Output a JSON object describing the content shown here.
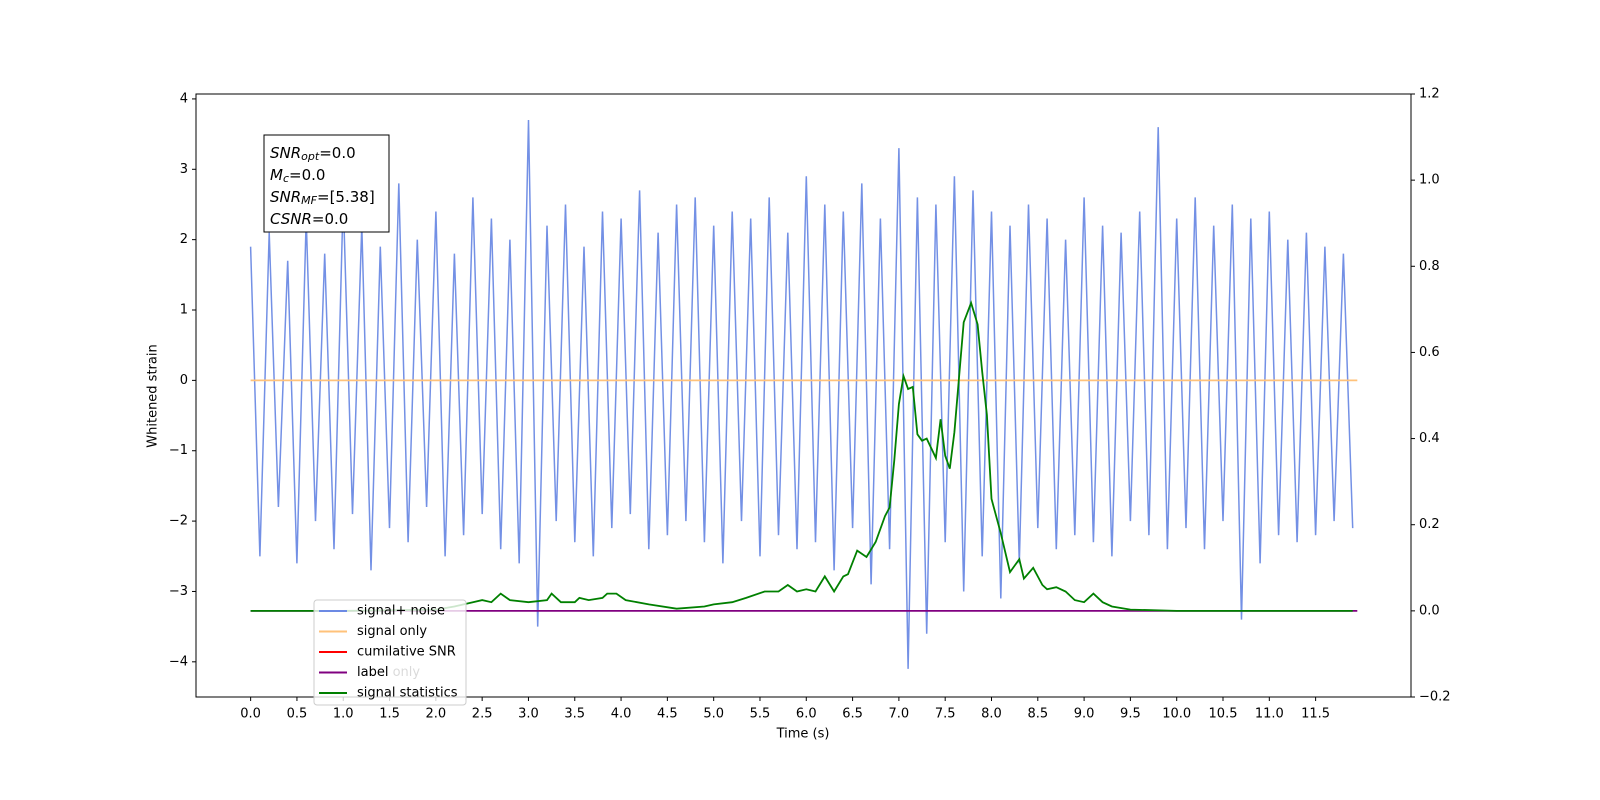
{
  "chart_data": {
    "type": "line",
    "xlabel": "Time (s)",
    "ylabel": "Whitened strain",
    "xlim": [
      -0.59,
      12.53
    ],
    "ylim": [
      -4.5,
      4.07
    ],
    "y2lim": [
      -0.2,
      1.2
    ],
    "xticks": [
      {
        "value": 0,
        "label": "0.0"
      },
      0.5,
      {
        "value": 1,
        "label": "1.0"
      },
      1.5,
      {
        "value": 2,
        "label": "2.0"
      },
      2.5,
      {
        "value": 3,
        "label": "3.0"
      },
      3.5,
      {
        "value": 4,
        "label": "4.0"
      },
      4.5,
      {
        "value": 5,
        "label": "5.0"
      },
      5.5,
      {
        "value": 6,
        "label": "6.0"
      },
      6.5,
      {
        "value": 7,
        "label": "7.0"
      },
      7.5,
      {
        "value": 8,
        "label": "8.0"
      },
      8.5,
      {
        "value": 9,
        "label": "9.0"
      },
      9.5,
      {
        "value": 10,
        "label": "10.0"
      },
      10.5,
      {
        "value": 11,
        "label": "11.0"
      },
      11.5
    ],
    "yticks": [
      {
        "value": -4,
        "label": "−4"
      },
      {
        "value": -3,
        "label": "−3"
      },
      {
        "value": -2,
        "label": "−2"
      },
      {
        "value": -1,
        "label": "−1"
      },
      0,
      1,
      2,
      3,
      4
    ],
    "y2ticks": [
      {
        "value": -0.2,
        "label": "−0.2"
      },
      {
        "value": 0,
        "label": "0.0"
      },
      0.2,
      0.4,
      0.6,
      0.8,
      {
        "value": 1,
        "label": "1.0"
      },
      1.2
    ],
    "annotation": [
      {
        "base": "SNR",
        "sub": "opt",
        "text": "=0.0"
      },
      {
        "base": "M",
        "sub": "c",
        "text": "=0.0"
      },
      {
        "base": "SNR",
        "sub": "MF",
        "text": "=[5.38]"
      },
      {
        "base": "CSNR",
        "text": "=0.0"
      }
    ],
    "series": [
      {
        "name": "signal+ noise",
        "color": "#6c8ae4",
        "x": [
          0.0,
          0.1,
          0.2,
          0.3,
          0.4,
          0.5,
          0.6,
          0.7,
          0.8,
          0.9,
          1.0,
          1.1,
          1.2,
          1.3,
          1.4,
          1.5,
          1.6,
          1.7,
          1.8,
          1.9,
          2.0,
          2.1,
          2.2,
          2.3,
          2.4,
          2.5,
          2.6,
          2.7,
          2.8,
          2.9,
          3.0,
          3.1,
          3.2,
          3.3,
          3.4,
          3.5,
          3.6,
          3.7,
          3.8,
          3.9,
          4.0,
          4.1,
          4.2,
          4.3,
          4.4,
          4.5,
          4.6,
          4.7,
          4.8,
          4.9,
          5.0,
          5.1,
          5.2,
          5.3,
          5.4,
          5.5,
          5.6,
          5.7,
          5.8,
          5.9,
          6.0,
          6.1,
          6.2,
          6.3,
          6.4,
          6.5,
          6.6,
          6.7,
          6.8,
          6.9,
          7.0,
          7.1,
          7.2,
          7.3,
          7.4,
          7.5,
          7.6,
          7.7,
          7.8,
          7.9,
          8.0,
          8.1,
          8.2,
          8.3,
          8.4,
          8.5,
          8.6,
          8.7,
          8.8,
          8.9,
          9.0,
          9.1,
          9.2,
          9.3,
          9.4,
          9.5,
          9.6,
          9.7,
          9.8,
          9.9,
          10.0,
          10.1,
          10.2,
          10.3,
          10.4,
          10.5,
          10.6,
          10.7,
          10.8,
          10.9,
          11.0,
          11.1,
          11.2,
          11.3,
          11.4,
          11.5,
          11.6,
          11.7,
          11.8,
          11.9
        ],
        "values": [
          1.9,
          -2.5,
          2.1,
          -1.8,
          1.7,
          -2.6,
          2.3,
          -2.0,
          1.8,
          -2.4,
          2.6,
          -1.9,
          2.2,
          -2.7,
          1.9,
          -2.1,
          2.8,
          -2.3,
          2.0,
          -1.8,
          2.4,
          -2.5,
          1.8,
          -2.2,
          2.6,
          -1.9,
          2.3,
          -2.4,
          2.0,
          -2.6,
          3.7,
          -3.5,
          2.2,
          -2.0,
          2.5,
          -2.3,
          1.9,
          -2.5,
          2.4,
          -2.1,
          2.3,
          -1.9,
          2.7,
          -2.4,
          2.1,
          -2.2,
          2.5,
          -2.0,
          2.6,
          -2.3,
          2.2,
          -2.6,
          2.4,
          -2.0,
          2.3,
          -2.5,
          2.6,
          -2.2,
          2.1,
          -2.4,
          2.9,
          -2.3,
          2.5,
          -2.7,
          2.4,
          -2.1,
          2.8,
          -2.9,
          2.3,
          -2.4,
          3.3,
          -4.1,
          2.6,
          -3.6,
          2.5,
          -2.3,
          2.9,
          -3.0,
          2.7,
          -2.5,
          2.4,
          -3.1,
          2.2,
          -2.6,
          2.5,
          -2.1,
          2.3,
          -2.4,
          2.0,
          -2.2,
          2.6,
          -2.3,
          2.2,
          -2.5,
          2.1,
          -2.0,
          2.4,
          -2.2,
          3.6,
          -2.4,
          2.3,
          -2.1,
          2.6,
          -2.4,
          2.2,
          -2.0,
          2.5,
          -3.4,
          2.3,
          -2.6,
          2.4,
          -2.2,
          2.0,
          -2.3,
          2.1,
          -2.2,
          1.9,
          -2.0,
          1.8,
          -2.1
        ]
      },
      {
        "name": "signal only",
        "color": "#ffc27a",
        "x": [
          0.0,
          11.95
        ],
        "values": [
          0,
          0
        ]
      },
      {
        "name": "cumilative SNR",
        "color": "#ff0000",
        "x": [],
        "values": []
      },
      {
        "name": "label",
        "color": "#800080",
        "axis": "y2",
        "x": [
          0.0,
          11.95
        ],
        "values": [
          0,
          0
        ]
      },
      {
        "name": "label only",
        "color": "#ffffff",
        "x": [],
        "values": []
      },
      {
        "name": "signal statistics",
        "color": "#008000",
        "axis": "y2",
        "x": [
          0.0,
          1.0,
          2.0,
          2.2,
          2.4,
          2.5,
          2.6,
          2.7,
          2.8,
          3.0,
          3.2,
          3.25,
          3.35,
          3.5,
          3.55,
          3.65,
          3.8,
          3.85,
          3.95,
          4.05,
          4.3,
          4.6,
          4.9,
          5.0,
          5.2,
          5.35,
          5.55,
          5.7,
          5.8,
          5.9,
          6.0,
          6.1,
          6.2,
          6.3,
          6.4,
          6.45,
          6.55,
          6.65,
          6.75,
          6.85,
          6.9,
          6.95,
          7.0,
          7.05,
          7.1,
          7.15,
          7.2,
          7.25,
          7.3,
          7.4,
          7.45,
          7.5,
          7.55,
          7.6,
          7.7,
          7.78,
          7.85,
          7.9,
          7.95,
          8.0,
          8.1,
          8.2,
          8.3,
          8.35,
          8.45,
          8.55,
          8.6,
          8.7,
          8.8,
          8.9,
          9.0,
          9.1,
          9.2,
          9.3,
          9.5,
          10.0,
          11.0,
          11.9
        ],
        "values": [
          0,
          0,
          0.003,
          0.01,
          0.02,
          0.025,
          0.02,
          0.04,
          0.025,
          0.02,
          0.025,
          0.04,
          0.02,
          0.02,
          0.03,
          0.025,
          0.03,
          0.04,
          0.04,
          0.025,
          0.015,
          0.005,
          0.01,
          0.015,
          0.02,
          0.03,
          0.045,
          0.045,
          0.06,
          0.045,
          0.05,
          0.045,
          0.08,
          0.045,
          0.08,
          0.085,
          0.14,
          0.125,
          0.16,
          0.22,
          0.24,
          0.35,
          0.48,
          0.545,
          0.515,
          0.52,
          0.41,
          0.395,
          0.4,
          0.355,
          0.445,
          0.36,
          0.33,
          0.415,
          0.67,
          0.715,
          0.665,
          0.555,
          0.455,
          0.26,
          0.18,
          0.09,
          0.12,
          0.075,
          0.1,
          0.06,
          0.05,
          0.055,
          0.045,
          0.025,
          0.02,
          0.04,
          0.02,
          0.01,
          0.003,
          0,
          0,
          0
        ]
      }
    ]
  }
}
